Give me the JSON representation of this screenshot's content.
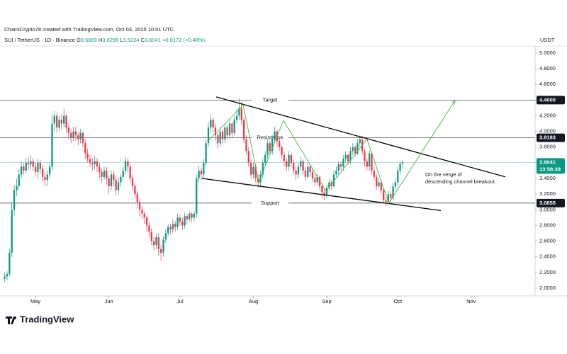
{
  "chart_data": {
    "type": "candlestick",
    "author": "ChamiCrypto78 created with TradingView.com, Oct 03, 2025 10:01 UTC",
    "symbol": "SUI / TetherUS · 1D · Binance",
    "ohlc_labels": [
      "O",
      "H",
      "L",
      "C"
    ],
    "change": "+0.0172 (+0.48%)",
    "currency": "USDT",
    "logo": "TradingView",
    "timer": "13:58:39",
    "up_color": "#089981",
    "down_color": "#f23645",
    "x": [
      0,
      1,
      2,
      3,
      4,
      5,
      6,
      7,
      8,
      9,
      10,
      11,
      12,
      13,
      14,
      15,
      16,
      17,
      18,
      19,
      20,
      21,
      22,
      23,
      24,
      25,
      26,
      27,
      28,
      29,
      30,
      31,
      32,
      33,
      34,
      35,
      36,
      37,
      38,
      39,
      40,
      41,
      42,
      43,
      44,
      45,
      46,
      47,
      48,
      49,
      50,
      51,
      52,
      53,
      54,
      55,
      56,
      57,
      58,
      59,
      60,
      61,
      62,
      63,
      64,
      65,
      66,
      67,
      68,
      69,
      70,
      71,
      72,
      73,
      74,
      75,
      76,
      77,
      78,
      79,
      80,
      81,
      82,
      83,
      84,
      85,
      86,
      87,
      88,
      89,
      90,
      91,
      92,
      93,
      94,
      95,
      96,
      97,
      98,
      99,
      100,
      101,
      102,
      103,
      104,
      105,
      106,
      107,
      108,
      109,
      110,
      111,
      112,
      113,
      114,
      115,
      116,
      117,
      118,
      119,
      120,
      121,
      122,
      123,
      124,
      125,
      126,
      127,
      128,
      129,
      130,
      131,
      132,
      133,
      134,
      135,
      136,
      137,
      138,
      139,
      140,
      141,
      142,
      143,
      144,
      145,
      146,
      147,
      148,
      149,
      150,
      151,
      152,
      153,
      154,
      155,
      156,
      157,
      158,
      159,
      160,
      161,
      162,
      163,
      164,
      165,
      166,
      167,
      168
    ],
    "open": [
      2.12,
      2.15,
      2.18,
      2.45,
      3.0,
      3.25,
      3.3,
      3.45,
      3.55,
      3.5,
      3.6,
      3.58,
      3.62,
      3.55,
      3.48,
      3.6,
      3.52,
      3.42,
      3.38,
      3.45,
      3.55,
      4.1,
      4.2,
      4.05,
      4.15,
      4.1,
      4.2,
      4.05,
      3.98,
      3.92,
      4.0,
      3.95,
      3.9,
      3.98,
      3.85,
      3.72,
      3.65,
      3.6,
      3.58,
      3.62,
      3.55,
      3.48,
      3.42,
      3.5,
      3.4,
      3.3,
      3.45,
      3.38,
      3.25,
      3.35,
      3.42,
      3.5,
      3.62,
      3.55,
      3.4,
      3.3,
      3.2,
      3.1,
      3.0,
      2.95,
      2.9,
      2.8,
      2.72,
      2.6,
      2.55,
      2.65,
      2.5,
      2.45,
      2.62,
      2.7,
      2.78,
      2.75,
      2.82,
      2.78,
      2.9,
      2.85,
      2.8,
      2.92,
      2.88,
      2.95,
      2.9,
      2.95,
      3.4,
      3.5,
      3.45,
      3.6,
      3.85,
      4.05,
      4.15,
      4.05,
      3.95,
      3.85,
      4.0,
      3.9,
      4.05,
      3.95,
      4.1,
      3.98,
      4.15,
      4.2,
      4.3,
      4.15,
      3.9,
      3.75,
      3.6,
      3.45,
      3.55,
      3.4,
      3.35,
      3.45,
      3.6,
      3.7,
      3.85,
      3.75,
      3.9,
      4.0,
      3.88,
      3.8,
      3.7,
      3.62,
      3.55,
      3.7,
      3.6,
      3.5,
      3.45,
      3.55,
      3.62,
      3.5,
      3.42,
      3.55,
      3.48,
      3.4,
      3.35,
      3.42,
      3.3,
      3.22,
      3.18,
      3.28,
      3.35,
      3.3,
      3.45,
      3.5,
      3.58,
      3.55,
      3.65,
      3.7,
      3.62,
      3.75,
      3.8,
      3.72,
      3.85,
      3.9,
      3.75,
      3.62,
      3.55,
      3.72,
      3.5,
      3.42,
      3.3,
      3.35,
      3.25,
      3.12,
      3.1,
      3.2,
      3.15,
      3.3,
      3.35,
      3.5,
      3.5869
    ],
    "high": [
      2.2,
      2.22,
      2.5,
      3.1,
      3.32,
      3.4,
      3.52,
      3.62,
      3.6,
      3.66,
      3.68,
      3.7,
      3.66,
      3.6,
      3.65,
      3.64,
      3.57,
      3.48,
      3.5,
      3.6,
      4.22,
      4.26,
      4.24,
      4.2,
      4.22,
      4.29,
      4.22,
      4.1,
      4.03,
      4.06,
      4.06,
      4.0,
      4.03,
      4.0,
      3.9,
      3.78,
      3.7,
      3.66,
      3.68,
      3.66,
      3.6,
      3.52,
      3.55,
      3.55,
      3.44,
      3.5,
      3.5,
      3.42,
      3.4,
      3.46,
      3.55,
      3.68,
      3.66,
      3.6,
      3.45,
      3.34,
      3.24,
      3.14,
      3.05,
      2.98,
      2.92,
      2.85,
      2.76,
      2.66,
      2.7,
      2.7,
      2.55,
      2.66,
      2.75,
      2.82,
      2.82,
      2.88,
      2.86,
      2.95,
      2.94,
      2.9,
      2.96,
      2.95,
      2.98,
      2.97,
      2.98,
      3.45,
      3.56,
      3.54,
      3.65,
      3.9,
      4.12,
      4.22,
      4.18,
      4.1,
      3.98,
      4.05,
      4.03,
      4.1,
      4.08,
      4.15,
      4.12,
      4.2,
      4.28,
      4.42,
      4.38,
      4.18,
      3.95,
      3.8,
      3.65,
      3.6,
      3.58,
      3.45,
      3.5,
      3.65,
      3.75,
      3.9,
      3.88,
      3.95,
      4.06,
      4.02,
      3.92,
      3.82,
      3.74,
      3.66,
      3.75,
      3.72,
      3.64,
      3.55,
      3.6,
      3.68,
      3.64,
      3.55,
      3.6,
      3.58,
      3.52,
      3.45,
      3.46,
      3.44,
      3.34,
      3.28,
      3.32,
      3.4,
      3.38,
      3.5,
      3.55,
      3.62,
      3.62,
      3.7,
      3.75,
      3.72,
      3.8,
      3.85,
      3.82,
      3.9,
      3.95,
      3.94,
      3.78,
      3.66,
      3.76,
      3.74,
      3.55,
      3.46,
      3.4,
      3.38,
      3.28,
      3.16,
      3.24,
      3.24,
      3.34,
      3.4,
      3.55,
      3.62,
      3.6299
    ],
    "low": [
      2.08,
      2.1,
      2.15,
      2.4,
      2.92,
      3.18,
      3.25,
      3.4,
      3.45,
      3.46,
      3.5,
      3.52,
      3.5,
      3.42,
      3.4,
      3.46,
      3.35,
      3.3,
      3.3,
      3.4,
      3.5,
      4.0,
      3.98,
      4.0,
      4.02,
      4.05,
      3.98,
      3.9,
      3.85,
      3.88,
      3.88,
      3.82,
      3.85,
      3.8,
      3.65,
      3.6,
      3.55,
      3.5,
      3.52,
      3.48,
      3.4,
      3.35,
      3.38,
      3.32,
      3.2,
      3.25,
      3.3,
      3.18,
      3.2,
      3.3,
      3.38,
      3.45,
      3.48,
      3.35,
      3.25,
      3.15,
      3.02,
      2.92,
      2.88,
      2.82,
      2.72,
      2.65,
      2.55,
      2.48,
      2.5,
      2.42,
      2.35,
      2.4,
      2.58,
      2.66,
      2.68,
      2.7,
      2.72,
      2.74,
      2.8,
      2.74,
      2.76,
      2.82,
      2.85,
      2.84,
      2.85,
      2.9,
      3.35,
      3.38,
      3.4,
      3.55,
      3.8,
      3.98,
      3.98,
      3.88,
      3.78,
      3.8,
      3.85,
      3.85,
      3.9,
      3.9,
      3.92,
      3.95,
      4.1,
      4.15,
      4.08,
      3.85,
      3.7,
      3.55,
      3.4,
      3.4,
      3.35,
      3.28,
      3.3,
      3.4,
      3.55,
      3.65,
      3.7,
      3.7,
      3.85,
      3.82,
      3.75,
      3.65,
      3.55,
      3.5,
      3.5,
      3.55,
      3.45,
      3.38,
      3.4,
      3.5,
      3.45,
      3.38,
      3.4,
      3.42,
      3.35,
      3.3,
      3.32,
      3.25,
      3.15,
      3.12,
      3.15,
      3.25,
      3.25,
      3.28,
      3.42,
      3.45,
      3.5,
      3.5,
      3.6,
      3.58,
      3.58,
      3.7,
      3.68,
      3.7,
      3.8,
      3.7,
      3.55,
      3.5,
      3.5,
      3.45,
      3.38,
      3.25,
      3.28,
      3.2,
      3.08,
      3.05,
      3.06,
      3.1,
      3.12,
      3.25,
      3.3,
      3.45,
      3.5224
    ],
    "close": [
      2.15,
      2.18,
      2.45,
      3.0,
      3.25,
      3.3,
      3.45,
      3.55,
      3.5,
      3.6,
      3.58,
      3.62,
      3.55,
      3.48,
      3.6,
      3.52,
      3.42,
      3.38,
      3.45,
      3.55,
      4.1,
      4.2,
      4.05,
      4.15,
      4.1,
      4.2,
      4.05,
      3.98,
      3.92,
      4.0,
      3.95,
      3.9,
      3.98,
      3.85,
      3.72,
      3.65,
      3.6,
      3.58,
      3.62,
      3.55,
      3.48,
      3.42,
      3.5,
      3.4,
      3.3,
      3.45,
      3.38,
      3.25,
      3.35,
      3.42,
      3.5,
      3.62,
      3.55,
      3.4,
      3.3,
      3.2,
      3.1,
      3.0,
      2.95,
      2.9,
      2.8,
      2.72,
      2.6,
      2.55,
      2.65,
      2.5,
      2.45,
      2.62,
      2.7,
      2.78,
      2.75,
      2.82,
      2.78,
      2.9,
      2.85,
      2.8,
      2.92,
      2.88,
      2.95,
      2.9,
      2.95,
      3.4,
      3.5,
      3.45,
      3.6,
      3.85,
      4.05,
      4.15,
      4.05,
      3.95,
      3.85,
      4.0,
      3.9,
      4.05,
      3.95,
      4.1,
      3.98,
      4.15,
      4.2,
      4.3,
      4.15,
      3.9,
      3.75,
      3.6,
      3.45,
      3.55,
      3.4,
      3.35,
      3.45,
      3.6,
      3.7,
      3.85,
      3.75,
      3.9,
      4.0,
      3.88,
      3.8,
      3.7,
      3.62,
      3.55,
      3.7,
      3.6,
      3.5,
      3.45,
      3.55,
      3.62,
      3.5,
      3.42,
      3.55,
      3.48,
      3.4,
      3.35,
      3.42,
      3.3,
      3.22,
      3.18,
      3.28,
      3.35,
      3.3,
      3.45,
      3.5,
      3.58,
      3.55,
      3.65,
      3.7,
      3.62,
      3.75,
      3.8,
      3.72,
      3.85,
      3.9,
      3.75,
      3.62,
      3.55,
      3.72,
      3.5,
      3.42,
      3.3,
      3.35,
      3.25,
      3.12,
      3.1,
      3.2,
      3.15,
      3.3,
      3.35,
      3.5,
      3.5869,
      3.6041
    ],
    "xlim": [
      -2,
      224
    ],
    "ylim": [
      1.9,
      5.09
    ],
    "xticks": [
      {
        "value": 13,
        "label": "May"
      },
      {
        "value": 44,
        "label": "Jun"
      },
      {
        "value": 74,
        "label": "Jul"
      },
      {
        "value": 105,
        "label": "Aug"
      },
      {
        "value": 136,
        "label": "Sep"
      },
      {
        "value": 166,
        "label": "Oct"
      },
      {
        "value": 197,
        "label": "Nov"
      }
    ],
    "yticks": [
      {
        "value": 2,
        "label": "2.0000"
      },
      {
        "value": 2.2,
        "label": "2.2000"
      },
      {
        "value": 2.4,
        "label": "2.4000"
      },
      {
        "value": 2.6,
        "label": "2.6000"
      },
      {
        "value": 2.8,
        "label": "2.8000"
      },
      {
        "value": 3,
        "label": "3.0000"
      },
      {
        "value": 3.2,
        "label": "3.2000"
      },
      {
        "value": 3.4,
        "label": "3.4000"
      },
      {
        "value": 3.6,
        "label": "3.6000"
      },
      {
        "value": 3.8,
        "label": "3.8000"
      },
      {
        "value": 4,
        "label": "4.0000"
      },
      {
        "value": 4.2,
        "label": "4.2000"
      },
      {
        "value": 4.4,
        "label": "4.4000"
      },
      {
        "value": 4.6,
        "label": "4.6000"
      },
      {
        "value": 4.8,
        "label": "4.8000"
      },
      {
        "value": 5,
        "label": "5.0000"
      }
    ],
    "levels": [
      {
        "name": "Target",
        "value": 4.4,
        "value_label": "4.4000"
      },
      {
        "name": "Resistance",
        "value": 3.9183,
        "value_label": "3.9183"
      },
      {
        "name": "Support",
        "value": 3.0855,
        "value_label": "3.0855"
      }
    ],
    "trendlines": [
      {
        "color": "#000000",
        "x": [
          89.3,
          211.4
        ],
        "y": [
          4.44,
          3.42
        ]
      },
      {
        "color": "#000000",
        "x": [
          83.3,
          184.2
        ],
        "y": [
          3.4,
          2.99
        ]
      },
      {
        "color": "#4caf50",
        "x": [
          85.7,
          100.7,
          107.3,
          117.7,
          135.7,
          153,
          162
        ],
        "y": [
          3.87,
          4.34,
          3.35,
          4.14,
          3.24,
          3.9,
          3.1
        ]
      },
      {
        "color": "#4caf50",
        "arrow": true,
        "x": [
          162,
          190.1
        ],
        "y": [
          3.075,
          4.39
        ]
      }
    ],
    "annotation": [
      "On the verge of",
      "descending channel breakout"
    ]
  }
}
